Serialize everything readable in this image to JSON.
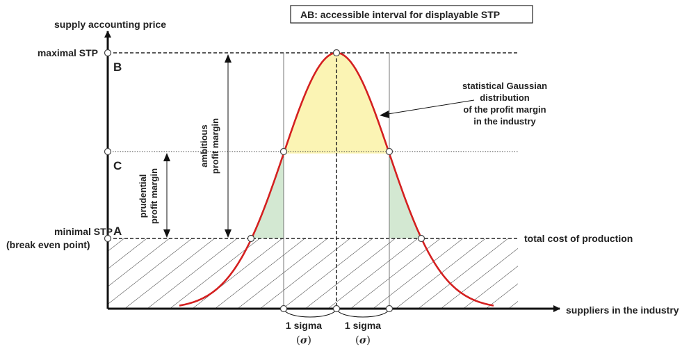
{
  "legend_box": "AB: accessible interval for displayable STP",
  "y_axis_label": "supply accounting price",
  "x_axis_label": "suppliers in the industry",
  "levels": {
    "max_label": "maximal STP",
    "max_letter": "B",
    "c_letter": "C",
    "min_label_line1": "minimal STP",
    "min_label_line2": "(break even point)",
    "min_letter": "A",
    "cost_label": "total cost of production"
  },
  "margins": {
    "ambitious_line1": "ambitious",
    "ambitious_line2": "profit margin",
    "prudential_line1": "prudential",
    "prudential_line2": "profit margin"
  },
  "gauss_annotation": {
    "line1": "statistical Gaussian",
    "line2": "distribution",
    "line3": "of the profit margin",
    "line4": "in the industry"
  },
  "sigma_labels": [
    {
      "text": "1 sigma",
      "symbol": "σ",
      "open": "(",
      "close": ")"
    },
    {
      "text": "1 sigma",
      "symbol": "σ",
      "open": "(",
      "close": ")"
    }
  ],
  "colors": {
    "curve": "#d42020",
    "upper_fill": "#fbf4b4",
    "tail_fill": "#d3e8d2",
    "hatch": "#333333",
    "axis": "#111111"
  }
}
